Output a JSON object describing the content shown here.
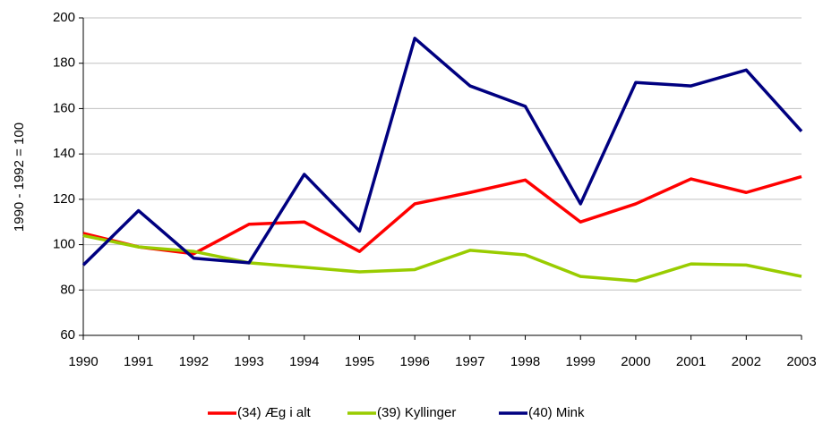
{
  "chart_data": {
    "type": "line",
    "y_label": "1990 - 1992 = 100",
    "x": [
      1990,
      1991,
      1992,
      1993,
      1994,
      1995,
      1996,
      1997,
      1998,
      1999,
      2000,
      2001,
      2002,
      2003
    ],
    "xlim": [
      1990,
      2003
    ],
    "xticks": [
      1990,
      1991,
      1992,
      1993,
      1994,
      1995,
      1996,
      1997,
      1998,
      1999,
      2000,
      2001,
      2002,
      2003
    ],
    "ylim": [
      60,
      200
    ],
    "yticks": [
      60,
      80,
      100,
      120,
      140,
      160,
      180,
      200
    ],
    "grid": true,
    "legend": "bottom",
    "series": [
      {
        "name": "(34) Æg i alt",
        "color": "#ff0000",
        "values": [
          105,
          99,
          96,
          109,
          110,
          97,
          118,
          123,
          128.5,
          110,
          118,
          129,
          123,
          130
        ]
      },
      {
        "name": "(39) Kyllinger",
        "color": "#99cc00",
        "values": [
          104,
          99,
          97,
          92,
          90,
          88,
          89,
          97.5,
          95.5,
          86,
          84,
          91.5,
          91,
          86
        ]
      },
      {
        "name": "(40) Mink",
        "color": "#000080",
        "values": [
          91,
          115,
          94,
          92,
          131,
          106,
          191,
          170,
          161,
          118,
          171.5,
          170,
          177,
          150
        ]
      }
    ]
  }
}
